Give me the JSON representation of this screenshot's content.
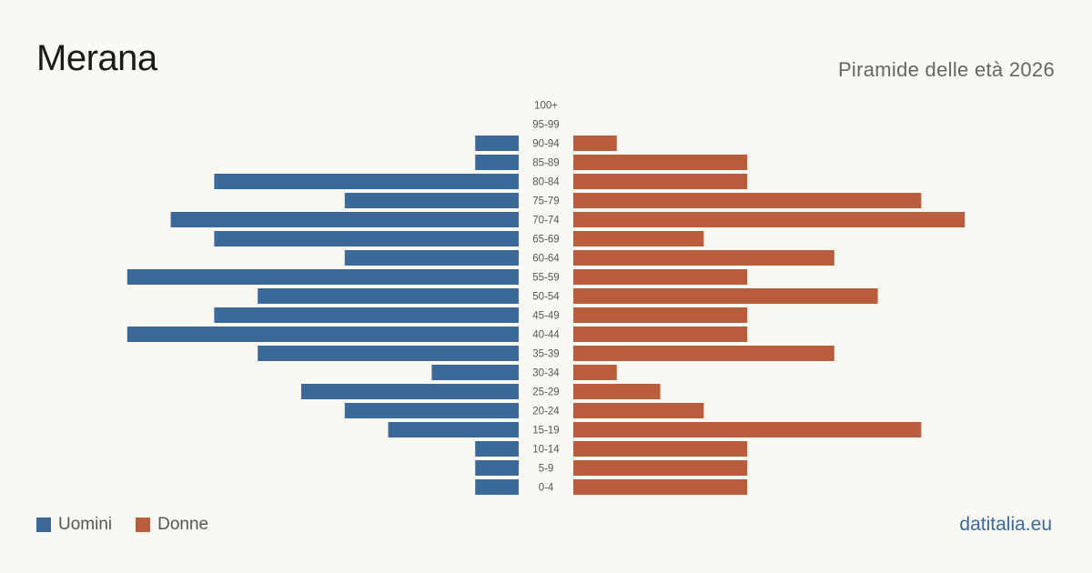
{
  "header": {
    "title": "Merana",
    "subtitle": "Piramide delle età 2026"
  },
  "brand": "datitalia.eu",
  "chart_data": {
    "type": "bar",
    "orientation": "horizontal-pyramid",
    "categories": [
      "100+",
      "95-99",
      "90-94",
      "85-89",
      "80-84",
      "75-79",
      "70-74",
      "65-69",
      "60-64",
      "55-59",
      "50-54",
      "45-49",
      "40-44",
      "35-39",
      "30-34",
      "25-29",
      "20-24",
      "15-19",
      "10-14",
      "5-9",
      "0-4"
    ],
    "series": [
      {
        "name": "Uomini",
        "color": "#3b6a9a",
        "side": "left",
        "values": [
          0,
          0,
          1,
          1,
          7,
          4,
          8,
          7,
          4,
          9,
          6,
          7,
          9,
          6,
          2,
          5,
          4,
          3,
          1,
          1,
          1
        ]
      },
      {
        "name": "Donne",
        "color": "#b95d3c",
        "side": "right",
        "values": [
          0,
          0,
          1,
          4,
          4,
          8,
          9,
          3,
          6,
          4,
          7,
          4,
          4,
          6,
          1,
          2,
          3,
          8,
          4,
          4,
          4
        ]
      }
    ],
    "legend_position": "bottom-left",
    "grid": false
  }
}
